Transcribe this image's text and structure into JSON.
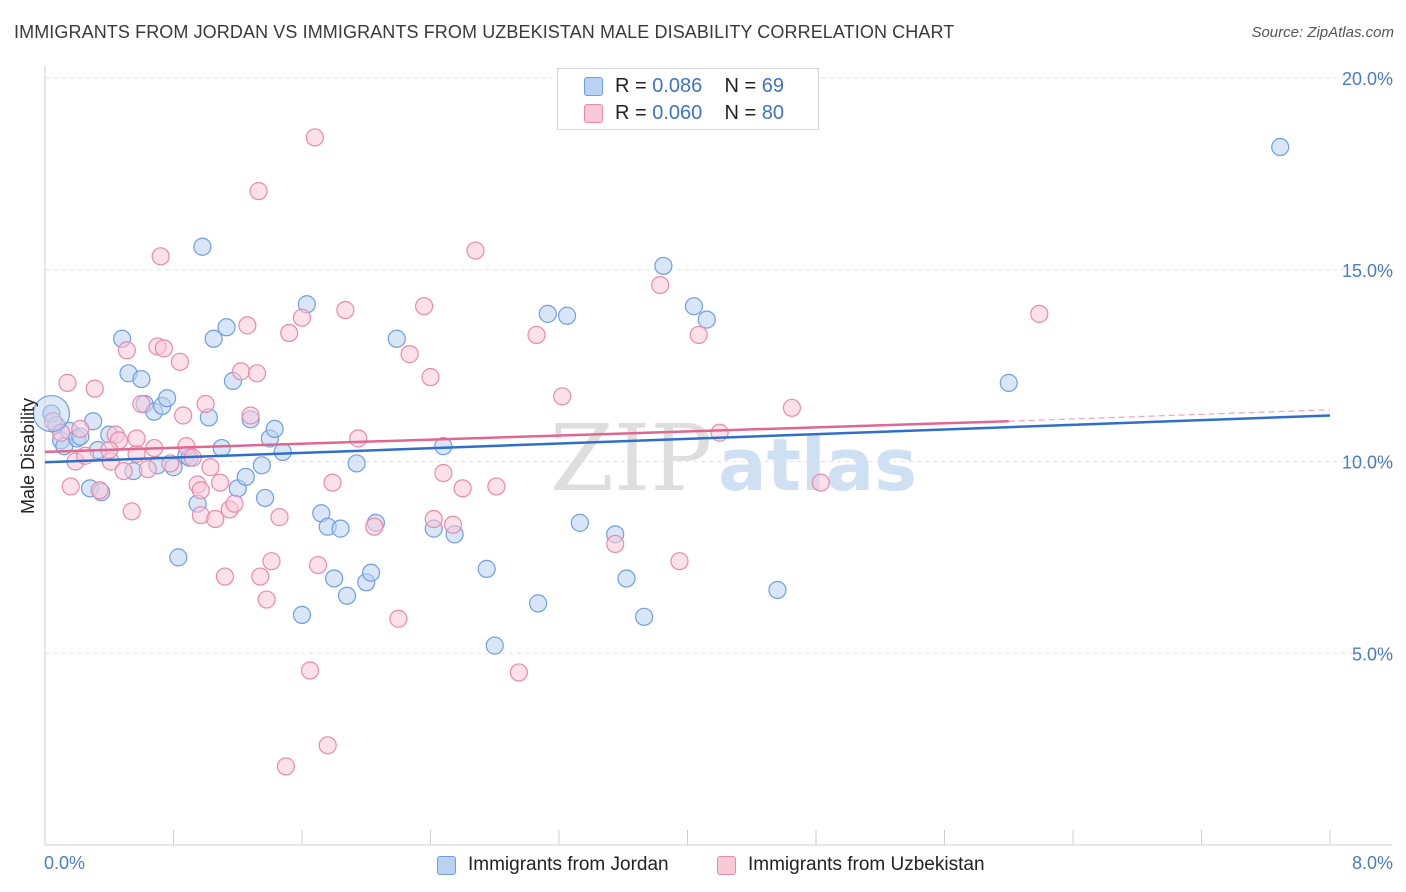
{
  "title": "IMMIGRANTS FROM JORDAN VS IMMIGRANTS FROM UZBEKISTAN MALE DISABILITY CORRELATION CHART",
  "source": "Source: ZipAtlas.com",
  "watermark": {
    "zip": "ZIP",
    "atlas": "atlas"
  },
  "legend": {
    "r_label": "R = ",
    "n_label": "N = ",
    "rows": [
      {
        "r": "0.086",
        "n": "69",
        "color": "#b9d1f2",
        "border": "#6f9fe0"
      },
      {
        "r": "0.060",
        "n": "80",
        "color": "#f9c9d8",
        "border": "#ea8aab"
      }
    ]
  },
  "bottom_legend": [
    {
      "label": "Immigrants from Jordan",
      "color": "#b9d1f2",
      "border": "#6f9fe0"
    },
    {
      "label": "Immigrants from Uzbekistan",
      "color": "#f9c9d8",
      "border": "#ea8aab"
    }
  ],
  "chart_data": {
    "type": "scatter",
    "title": "IMMIGRANTS FROM JORDAN VS IMMIGRANTS FROM UZBEKISTAN MALE DISABILITY CORRELATION CHART",
    "xlabel": "",
    "ylabel": "Male Disability",
    "xlim": [
      0,
      8
    ],
    "ylim": [
      0,
      20
    ],
    "x_tick_labels": [
      {
        "value": 0,
        "label": "0.0%"
      },
      {
        "value": 8,
        "label": "8.0%"
      }
    ],
    "y_tick_labels": [
      {
        "value": 5,
        "label": "5.0%"
      },
      {
        "value": 10,
        "label": "10.0%"
      },
      {
        "value": 15,
        "label": "15.0%"
      },
      {
        "value": 20,
        "label": "20.0%"
      }
    ],
    "grid": true,
    "series": [
      {
        "name": "Immigrants from Jordan",
        "color": "#6f9fe0",
        "fill": "#b9d1f2",
        "trend": {
          "x0": 0,
          "y0": 9.98,
          "x1": 8,
          "y1": 11.2,
          "color": "#2f6fc8"
        },
        "points": [
          [
            0.04,
            11.25
          ],
          [
            0.07,
            10.95
          ],
          [
            0.1,
            10.55
          ],
          [
            0.15,
            10.8
          ],
          [
            0.12,
            10.4
          ],
          [
            0.2,
            10.6
          ],
          [
            0.22,
            10.65
          ],
          [
            0.28,
            9.3
          ],
          [
            0.3,
            11.05
          ],
          [
            0.33,
            10.3
          ],
          [
            0.35,
            9.2
          ],
          [
            0.4,
            10.7
          ],
          [
            0.48,
            13.2
          ],
          [
            0.52,
            12.3
          ],
          [
            0.55,
            9.75
          ],
          [
            0.6,
            12.15
          ],
          [
            0.62,
            11.5
          ],
          [
            0.68,
            11.3
          ],
          [
            0.7,
            9.9
          ],
          [
            0.73,
            11.45
          ],
          [
            0.76,
            11.65
          ],
          [
            0.8,
            9.85
          ],
          [
            0.83,
            7.5
          ],
          [
            0.88,
            10.15
          ],
          [
            0.9,
            10.1
          ],
          [
            0.95,
            8.9
          ],
          [
            0.98,
            15.6
          ],
          [
            1.02,
            11.15
          ],
          [
            1.05,
            13.2
          ],
          [
            1.1,
            10.35
          ],
          [
            1.13,
            13.5
          ],
          [
            1.17,
            12.1
          ],
          [
            1.2,
            9.3
          ],
          [
            1.25,
            9.6
          ],
          [
            1.28,
            11.1
          ],
          [
            1.35,
            9.9
          ],
          [
            1.37,
            9.05
          ],
          [
            1.4,
            10.6
          ],
          [
            1.43,
            10.85
          ],
          [
            1.48,
            10.25
          ],
          [
            1.6,
            6.0
          ],
          [
            1.63,
            14.1
          ],
          [
            1.72,
            8.65
          ],
          [
            1.76,
            8.3
          ],
          [
            1.8,
            6.95
          ],
          [
            1.84,
            8.25
          ],
          [
            1.88,
            6.5
          ],
          [
            1.94,
            9.95
          ],
          [
            2.0,
            6.85
          ],
          [
            2.03,
            7.1
          ],
          [
            2.06,
            8.4
          ],
          [
            2.19,
            13.2
          ],
          [
            2.42,
            8.25
          ],
          [
            2.48,
            10.4
          ],
          [
            2.55,
            8.1
          ],
          [
            2.75,
            7.2
          ],
          [
            2.8,
            5.2
          ],
          [
            3.07,
            6.3
          ],
          [
            3.13,
            13.85
          ],
          [
            3.25,
            13.8
          ],
          [
            3.33,
            8.4
          ],
          [
            3.55,
            8.1
          ],
          [
            3.62,
            6.95
          ],
          [
            3.73,
            5.95
          ],
          [
            3.85,
            15.1
          ],
          [
            4.04,
            14.05
          ],
          [
            4.12,
            13.7
          ],
          [
            4.56,
            6.65
          ],
          [
            6.0,
            12.05
          ],
          [
            7.69,
            18.2
          ]
        ]
      },
      {
        "name": "Immigrants from Uzbekistan",
        "color": "#ea8aab",
        "fill": "#f9c9d8",
        "trend": {
          "x0": 0,
          "y0": 10.25,
          "x1": 6.0,
          "y1": 11.05,
          "color": "#e0678f",
          "dash_to": {
            "x": 8,
            "y": 11.35
          }
        },
        "points": [
          [
            0.05,
            11.05
          ],
          [
            0.1,
            10.75
          ],
          [
            0.14,
            12.05
          ],
          [
            0.16,
            9.35
          ],
          [
            0.19,
            10.0
          ],
          [
            0.22,
            10.85
          ],
          [
            0.25,
            10.15
          ],
          [
            0.31,
            11.9
          ],
          [
            0.34,
            9.25
          ],
          [
            0.41,
            10.0
          ],
          [
            0.44,
            10.7
          ],
          [
            0.46,
            10.55
          ],
          [
            0.49,
            9.75
          ],
          [
            0.51,
            12.9
          ],
          [
            0.54,
            8.7
          ],
          [
            0.57,
            10.2
          ],
          [
            0.6,
            11.5
          ],
          [
            0.64,
            9.8
          ],
          [
            0.68,
            10.35
          ],
          [
            0.7,
            13.0
          ],
          [
            0.72,
            15.35
          ],
          [
            0.74,
            12.95
          ],
          [
            0.78,
            9.95
          ],
          [
            0.84,
            12.6
          ],
          [
            0.86,
            11.2
          ],
          [
            0.88,
            10.4
          ],
          [
            0.92,
            10.1
          ],
          [
            0.95,
            9.4
          ],
          [
            0.97,
            8.6
          ],
          [
            1.0,
            11.5
          ],
          [
            1.03,
            9.85
          ],
          [
            1.06,
            8.5
          ],
          [
            1.09,
            9.45
          ],
          [
            1.12,
            7.0
          ],
          [
            1.15,
            8.75
          ],
          [
            1.18,
            8.9
          ],
          [
            1.22,
            12.35
          ],
          [
            1.26,
            13.55
          ],
          [
            1.28,
            11.2
          ],
          [
            1.32,
            12.3
          ],
          [
            1.34,
            7.0
          ],
          [
            1.38,
            6.4
          ],
          [
            1.41,
            7.4
          ],
          [
            1.46,
            8.55
          ],
          [
            1.52,
            13.35
          ],
          [
            1.6,
            13.75
          ],
          [
            1.65,
            4.55
          ],
          [
            1.7,
            7.3
          ],
          [
            1.76,
            2.6
          ],
          [
            1.79,
            9.45
          ],
          [
            1.87,
            13.95
          ],
          [
            1.95,
            10.6
          ],
          [
            2.05,
            8.3
          ],
          [
            2.2,
            5.9
          ],
          [
            2.27,
            12.8
          ],
          [
            2.36,
            14.05
          ],
          [
            2.4,
            12.2
          ],
          [
            2.48,
            9.7
          ],
          [
            2.6,
            9.3
          ],
          [
            2.68,
            15.5
          ],
          [
            2.81,
            9.35
          ],
          [
            2.95,
            4.5
          ],
          [
            3.06,
            13.3
          ],
          [
            3.22,
            11.7
          ],
          [
            3.55,
            7.85
          ],
          [
            3.83,
            14.6
          ],
          [
            4.07,
            13.3
          ],
          [
            4.2,
            10.75
          ],
          [
            4.65,
            11.4
          ],
          [
            4.83,
            9.45
          ],
          [
            1.33,
            17.05
          ],
          [
            1.68,
            18.45
          ],
          [
            6.19,
            13.85
          ],
          [
            2.42,
            8.5
          ],
          [
            3.95,
            7.4
          ],
          [
            0.57,
            10.6
          ],
          [
            1.5,
            2.05
          ],
          [
            0.97,
            9.25
          ],
          [
            0.4,
            10.3
          ],
          [
            2.54,
            8.35
          ]
        ]
      }
    ]
  }
}
